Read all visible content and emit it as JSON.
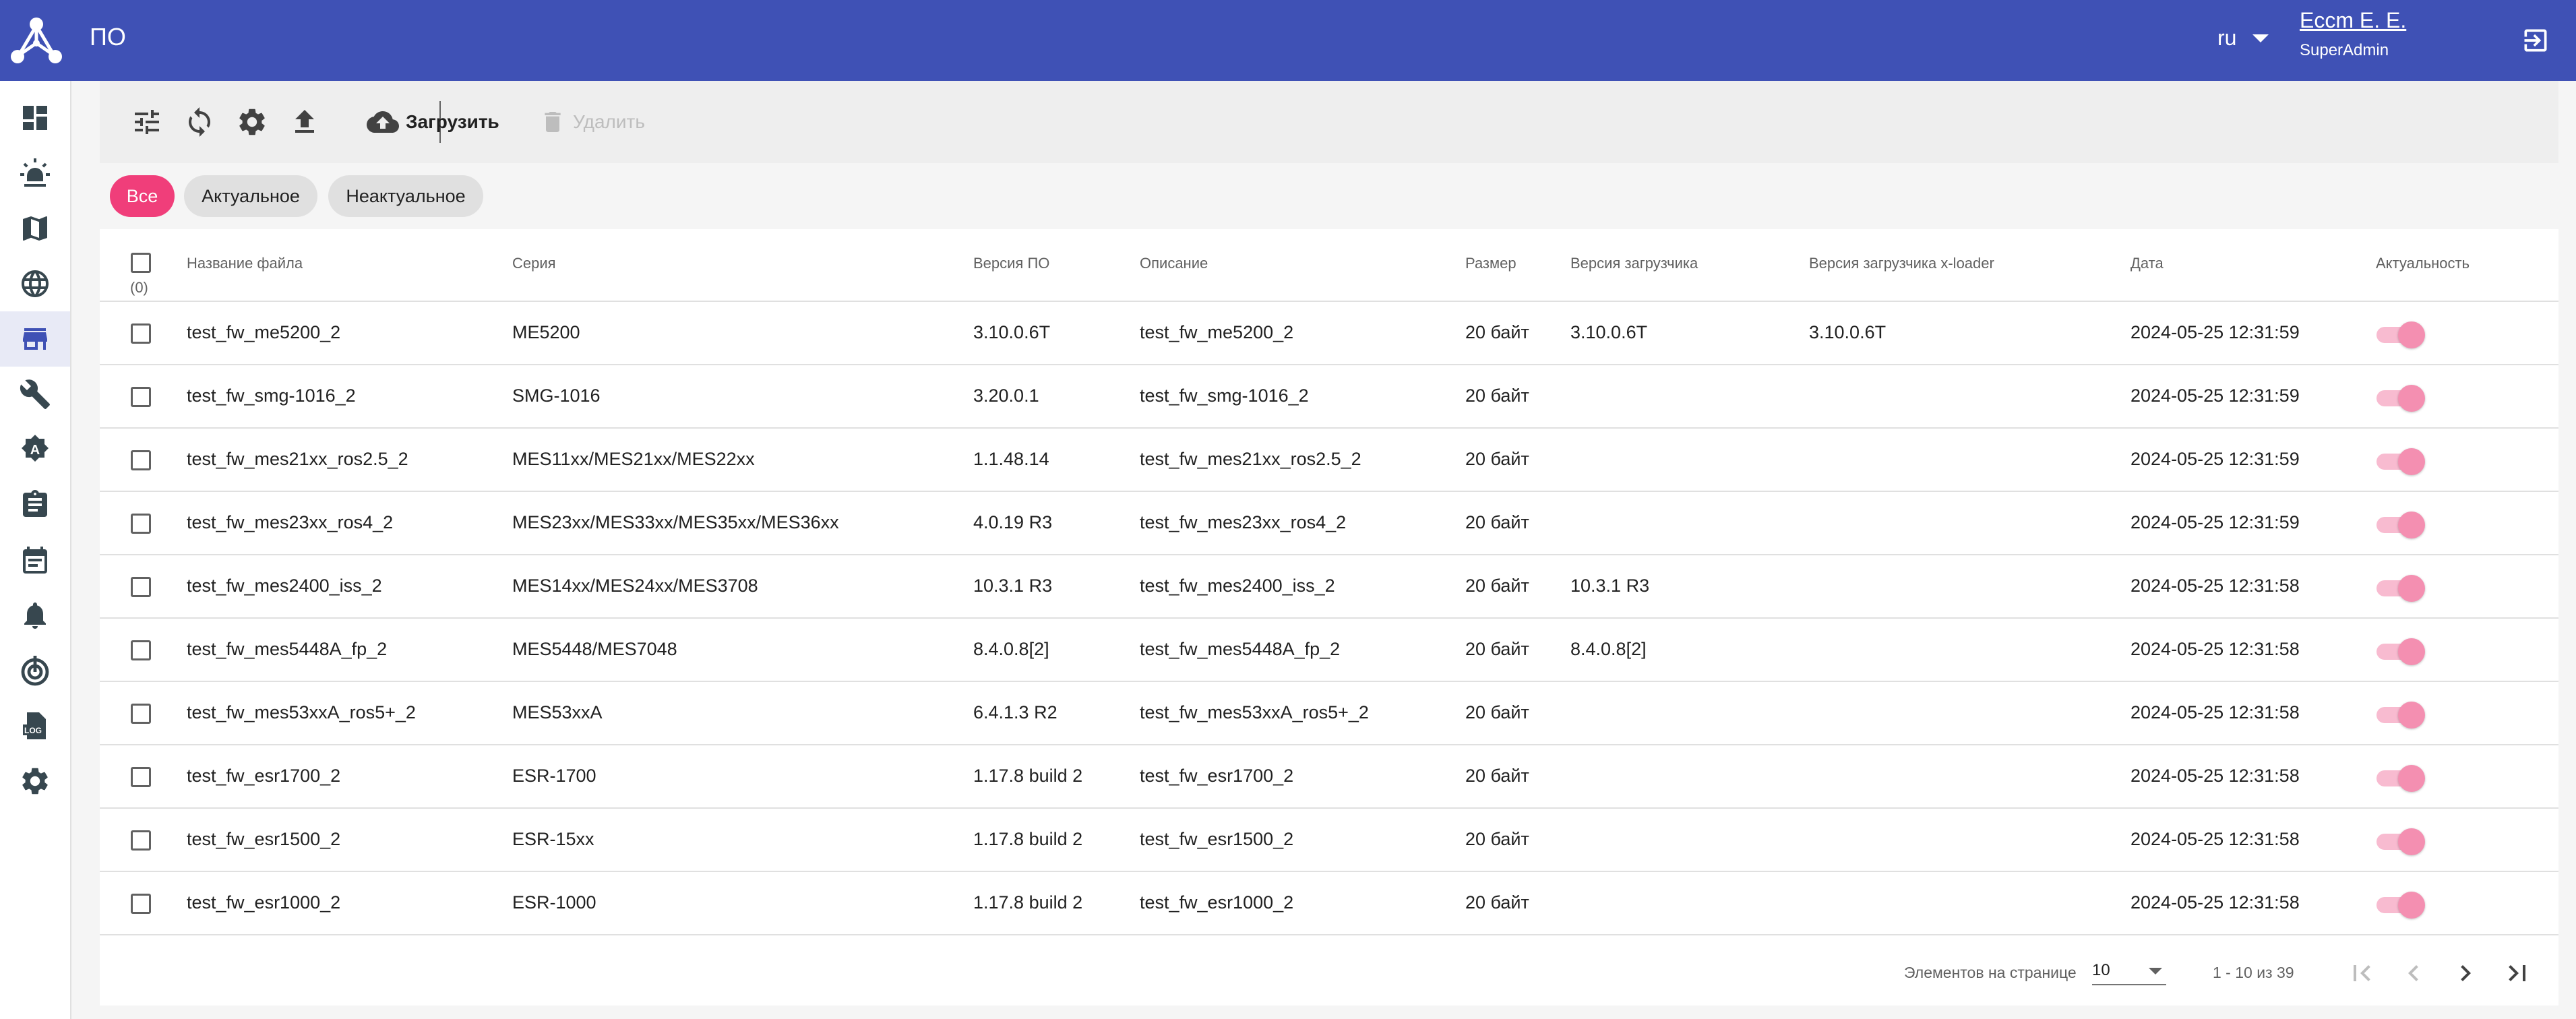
{
  "header": {
    "title": "ПО",
    "language": "ru",
    "user_name": "Еccm Е. Е.",
    "user_role": "SuperAdmin",
    "accent_color": "#3f51b5"
  },
  "sidebar": {
    "items": [
      {
        "icon": "dashboard-icon"
      },
      {
        "icon": "alarm-light-icon"
      },
      {
        "icon": "map-icon"
      },
      {
        "icon": "globe-icon"
      },
      {
        "icon": "store-icon",
        "active": true
      },
      {
        "icon": "wrench-icon"
      },
      {
        "icon": "auto-fix-icon"
      },
      {
        "icon": "clipboard-icon"
      },
      {
        "icon": "calendar-icon"
      },
      {
        "icon": "bell-icon"
      },
      {
        "icon": "target-icon"
      },
      {
        "icon": "log-file-icon"
      },
      {
        "icon": "settings-icon"
      }
    ]
  },
  "toolbar": {
    "upload_label": "Загрузить",
    "delete_label": "Удалить"
  },
  "filters": {
    "chips": [
      {
        "label": "Все",
        "active": true
      },
      {
        "label": "Актуальное",
        "active": false
      },
      {
        "label": "Неактуальное",
        "active": false
      }
    ],
    "active_color": "#f03e7a"
  },
  "table": {
    "selected_count": "(0)",
    "columns": {
      "name": "Название файла",
      "series": "Серия",
      "version": "Версия ПО",
      "description": "Описание",
      "size": "Размер",
      "loader": "Версия загрузчика",
      "xloader": "Версия загрузчика x-loader",
      "date": "Дата",
      "actual": "Актуальность"
    },
    "rows": [
      {
        "name": "test_fw_me5200_2",
        "series": "ME5200",
        "version": "3.10.0.6T",
        "description": "test_fw_me5200_2",
        "size": "20 байт",
        "loader": "3.10.0.6T",
        "xloader": "3.10.0.6T",
        "date": "2024-05-25 12:31:59",
        "actual": true
      },
      {
        "name": "test_fw_smg-1016_2",
        "series": "SMG-1016",
        "version": "3.20.0.1",
        "description": "test_fw_smg-1016_2",
        "size": "20 байт",
        "loader": "",
        "xloader": "",
        "date": "2024-05-25 12:31:59",
        "actual": true
      },
      {
        "name": "test_fw_mes21xx_ros2.5_2",
        "series": "MES11xx/MES21xx/MES22xx",
        "version": "1.1.48.14",
        "description": "test_fw_mes21xx_ros2.5_2",
        "size": "20 байт",
        "loader": "",
        "xloader": "",
        "date": "2024-05-25 12:31:59",
        "actual": true
      },
      {
        "name": "test_fw_mes23xx_ros4_2",
        "series": "MES23xx/MES33xx/MES35xx/MES36xx",
        "version": "4.0.19 R3",
        "description": "test_fw_mes23xx_ros4_2",
        "size": "20 байт",
        "loader": "",
        "xloader": "",
        "date": "2024-05-25 12:31:59",
        "actual": true
      },
      {
        "name": "test_fw_mes2400_iss_2",
        "series": "MES14xx/MES24xx/MES3708",
        "version": "10.3.1 R3",
        "description": "test_fw_mes2400_iss_2",
        "size": "20 байт",
        "loader": "10.3.1 R3",
        "xloader": "",
        "date": "2024-05-25 12:31:58",
        "actual": true
      },
      {
        "name": "test_fw_mes5448A_fp_2",
        "series": "MES5448/MES7048",
        "version": "8.4.0.8[2]",
        "description": "test_fw_mes5448A_fp_2",
        "size": "20 байт",
        "loader": "8.4.0.8[2]",
        "xloader": "",
        "date": "2024-05-25 12:31:58",
        "actual": true
      },
      {
        "name": "test_fw_mes53xxA_ros5+_2",
        "series": "MES53xxA",
        "version": "6.4.1.3 R2",
        "description": "test_fw_mes53xxA_ros5+_2",
        "size": "20 байт",
        "loader": "",
        "xloader": "",
        "date": "2024-05-25 12:31:58",
        "actual": true
      },
      {
        "name": "test_fw_esr1700_2",
        "series": "ESR-1700",
        "version": "1.17.8 build 2",
        "description": "test_fw_esr1700_2",
        "size": "20 байт",
        "loader": "",
        "xloader": "",
        "date": "2024-05-25 12:31:58",
        "actual": true
      },
      {
        "name": "test_fw_esr1500_2",
        "series": "ESR-15xx",
        "version": "1.17.8 build 2",
        "description": "test_fw_esr1500_2",
        "size": "20 байт",
        "loader": "",
        "xloader": "",
        "date": "2024-05-25 12:31:58",
        "actual": true
      },
      {
        "name": "test_fw_esr1000_2",
        "series": "ESR-1000",
        "version": "1.17.8 build 2",
        "description": "test_fw_esr1000_2",
        "size": "20 байт",
        "loader": "",
        "xloader": "",
        "date": "2024-05-25 12:31:58",
        "actual": true
      }
    ]
  },
  "pagination": {
    "per_page_label": "Элементов на странице",
    "per_page_value": "10",
    "range_text": "1 - 10 из 39"
  }
}
